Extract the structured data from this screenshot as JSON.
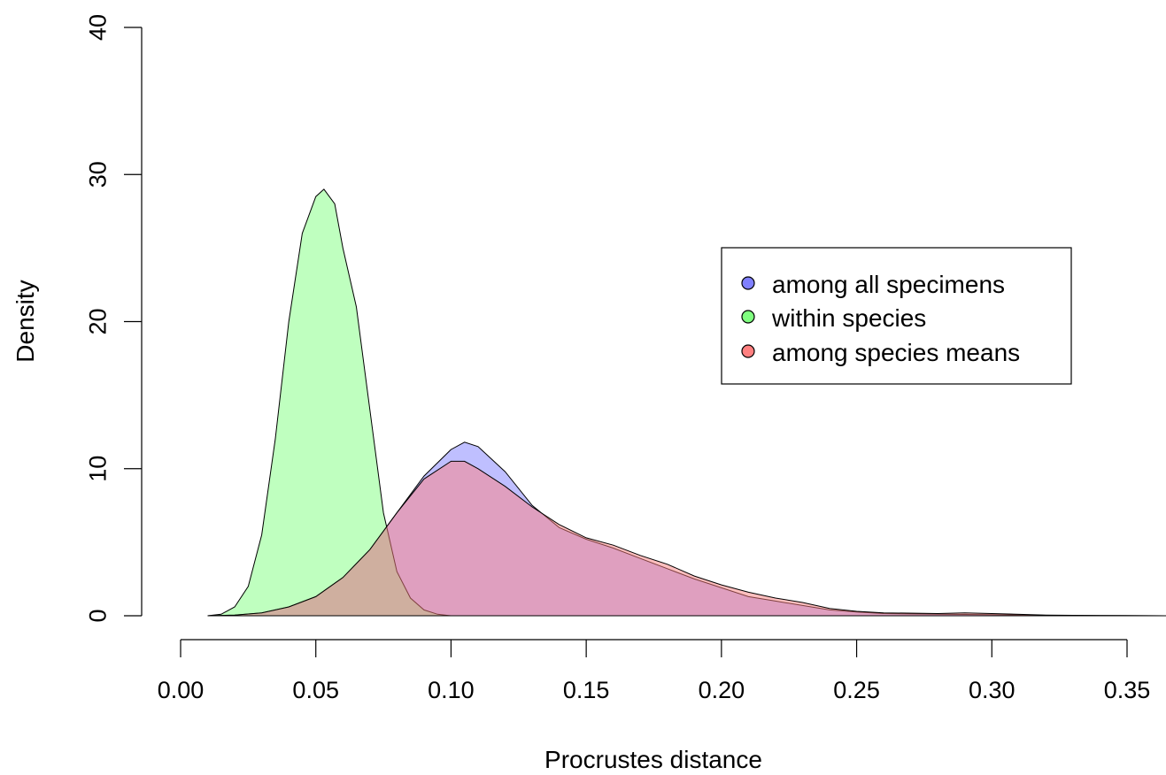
{
  "chart_data": {
    "type": "area",
    "xlabel": "Procrustes distance",
    "ylabel": "Density",
    "xlim": [
      0.0,
      0.365
    ],
    "ylim": [
      0,
      40
    ],
    "x_ticks": [
      "0.00",
      "0.05",
      "0.10",
      "0.15",
      "0.20",
      "0.25",
      "0.30",
      "0.35"
    ],
    "y_ticks": [
      "0",
      "10",
      "20",
      "30",
      "40"
    ],
    "grid": false,
    "legend_position": "right-center",
    "series": [
      {
        "name": "among all specimens",
        "color": "#8080ff",
        "x": [
          0.01,
          0.02,
          0.03,
          0.04,
          0.05,
          0.06,
          0.07,
          0.08,
          0.09,
          0.1,
          0.105,
          0.11,
          0.12,
          0.13,
          0.14,
          0.15,
          0.16,
          0.17,
          0.18,
          0.19,
          0.2,
          0.21,
          0.22,
          0.23,
          0.24,
          0.25,
          0.26,
          0.28,
          0.3,
          0.32,
          0.34,
          0.365
        ],
        "y": [
          0,
          0.05,
          0.2,
          0.6,
          1.3,
          2.6,
          4.5,
          7.0,
          9.5,
          11.3,
          11.8,
          11.5,
          9.8,
          7.5,
          6.0,
          5.2,
          4.6,
          3.9,
          3.2,
          2.5,
          1.9,
          1.3,
          1.0,
          0.7,
          0.4,
          0.25,
          0.15,
          0.1,
          0.08,
          0.03,
          0.01,
          0.0
        ]
      },
      {
        "name": "within species",
        "color": "#80ff80",
        "x": [
          0.01,
          0.015,
          0.02,
          0.025,
          0.03,
          0.035,
          0.04,
          0.045,
          0.05,
          0.053,
          0.057,
          0.06,
          0.065,
          0.07,
          0.075,
          0.08,
          0.085,
          0.09,
          0.095,
          0.1
        ],
        "y": [
          0,
          0.1,
          0.6,
          2.0,
          5.5,
          12.0,
          20.0,
          26.0,
          28.5,
          29.0,
          28.0,
          25.0,
          21.0,
          14.0,
          7.0,
          3.0,
          1.2,
          0.4,
          0.1,
          0
        ]
      },
      {
        "name": "among species means",
        "color": "#ff8080",
        "x": [
          0.01,
          0.02,
          0.03,
          0.04,
          0.05,
          0.06,
          0.07,
          0.08,
          0.09,
          0.1,
          0.105,
          0.11,
          0.12,
          0.13,
          0.14,
          0.15,
          0.16,
          0.17,
          0.18,
          0.19,
          0.2,
          0.21,
          0.22,
          0.23,
          0.24,
          0.25,
          0.26,
          0.28,
          0.29,
          0.3,
          0.32,
          0.34,
          0.365
        ],
        "y": [
          0,
          0.05,
          0.2,
          0.6,
          1.3,
          2.6,
          4.5,
          7.0,
          9.3,
          10.5,
          10.5,
          10.0,
          8.8,
          7.4,
          6.2,
          5.3,
          4.8,
          4.1,
          3.5,
          2.7,
          2.1,
          1.6,
          1.2,
          0.9,
          0.5,
          0.3,
          0.2,
          0.15,
          0.2,
          0.15,
          0.05,
          0.02,
          0.0
        ]
      }
    ]
  }
}
